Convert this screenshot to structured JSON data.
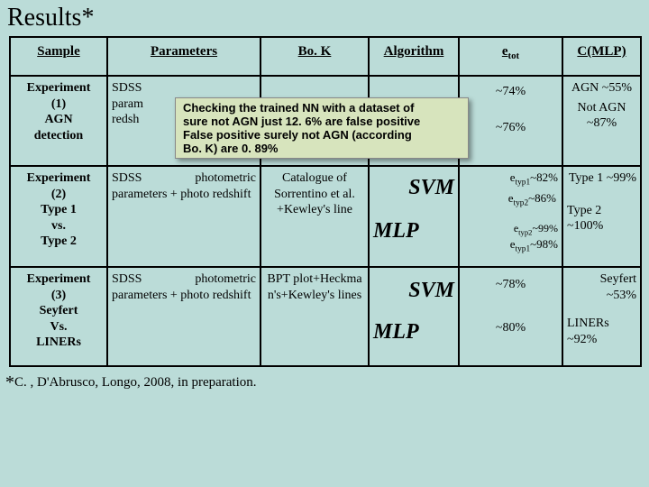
{
  "title": "Results*",
  "headers": {
    "sample": "Sample",
    "parameters": "Parameters",
    "bok": "Bo. K",
    "algorithm": "Algorithm",
    "etot_html": "e<sub>tot</sub>",
    "cmlp": "C(MLP)"
  },
  "rows": [
    {
      "sample_html": "Experiment<br>(1)<br>AGN<br>detection",
      "parameters_html": "SDSS<br>param<br>redsh",
      "bok": "",
      "alg_top": "",
      "alg_bot": "",
      "etot_top": "~74%",
      "etot_bot": "~76%",
      "cmlp_html": "AGN ~55%<br><span style=\"display:block;margin-top:4px\">Not AGN ~87%</span>"
    },
    {
      "sample_html": "Experiment<br>(2)<br>Type 1<br>vs.<br>Type 2",
      "parameters_html": "SDSS photometric parameters + photo redshift",
      "bok_html": "Catalogue of Sorrentino et al. +Kewley's line",
      "alg_top": "SVM",
      "alg_bot": "MLP",
      "etot_top_html": "<span class=\"e-sup-sub\">e<sub>typ1</sub></span>~82%",
      "etot_top2_html": "<span class=\"e-sup-sub\">e<sub>typ2</sub></span>~86%",
      "etot_bot_html": "<span class=\"e-sup-sub\">e<sub>typ2</sub></span>~99%",
      "etot_bot2_html": "<span class=\"e-sup-sub\">e<sub>typ1</sub></span>~98%",
      "cmlp_html": "<span style=\"display:block;text-align:right\">Type 1 ~99%</span><span style=\"display:block;margin-top:18px\">Type 2 ~100%</span>"
    },
    {
      "sample_html": "Experiment<br>(3)<br>Seyfert<br>Vs.<br>LINERs",
      "parameters_html": "SDSS photometric parameters + photo redshift",
      "bok_html": "BPT plot+Heckma n's+Kewley's lines",
      "alg_top": "SVM",
      "alg_bot": "MLP",
      "etot_top": "~78%",
      "etot_bot": "~80%",
      "cmlp_html": "<span style=\"display:block;text-align:right\">Seyfert ~53%</span><span style=\"display:block;margin-top:14px\">LINERs ~92%</span>"
    }
  ],
  "popup": {
    "line1": "Checking the trained NN with a dataset of",
    "line2": "sure not AGN  just 12. 6% are false positive",
    "line3": "False positive surely not AGN (according",
    "line4": "Bo. K) are 0. 89%"
  },
  "footnote_html": "<span class=\"ast\">*</span>C. , D'Abrusco, Longo, 2008, in preparation.",
  "colors": {
    "page_bg": "#bbdcd8",
    "popup_bg": "#d7e4bd",
    "border": "#000000"
  }
}
